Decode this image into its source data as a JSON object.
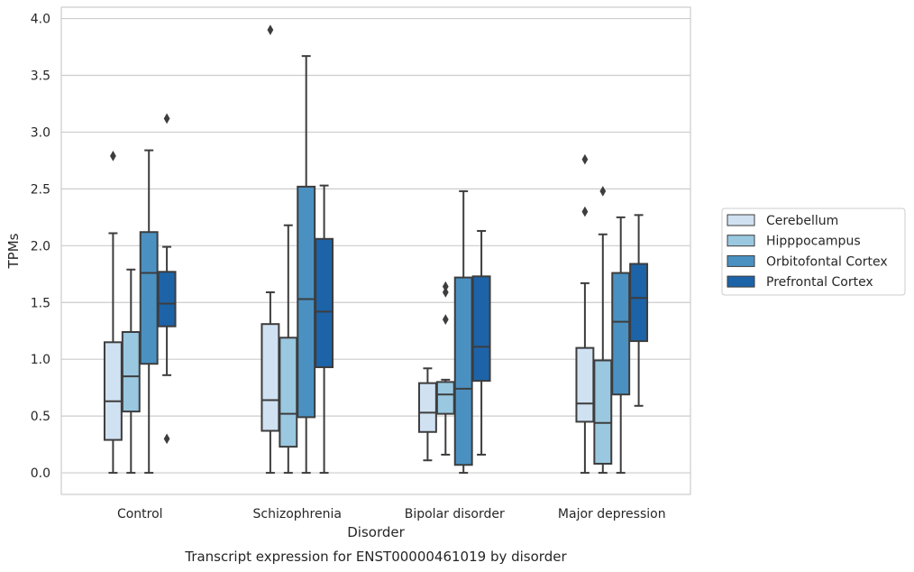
{
  "chart_data": {
    "type": "box",
    "xlabel": "Disorder",
    "ylabel": "TPMs",
    "caption": "Transcript expression for ENST00000461019 by disorder",
    "ylim": [
      -0.19,
      4.1
    ],
    "yticks": [
      "0.0",
      "0.5",
      "1.0",
      "1.5",
      "2.0",
      "2.5",
      "3.0",
      "3.5",
      "4.0"
    ],
    "grid": "horizontal",
    "legend_position": "right",
    "categories": [
      "Control",
      "Schizophrenia",
      "Bipolar disorder",
      "Major depression"
    ],
    "series": [
      {
        "name": "Cerebellum",
        "color": "#d0e1f2",
        "boxes": [
          {
            "min": 0.0,
            "q1": 0.29,
            "median": 0.63,
            "q3": 1.15,
            "max": 2.11,
            "outliers": [
              2.79
            ]
          },
          {
            "min": 0.0,
            "q1": 0.37,
            "median": 0.64,
            "q3": 1.31,
            "max": 1.59,
            "outliers": [
              3.9
            ]
          },
          {
            "min": 0.11,
            "q1": 0.36,
            "median": 0.53,
            "q3": 0.79,
            "max": 0.92,
            "outliers": []
          },
          {
            "min": 0.0,
            "q1": 0.45,
            "median": 0.61,
            "q3": 1.1,
            "max": 1.67,
            "outliers": [
              2.3,
              2.76
            ]
          }
        ]
      },
      {
        "name": "Hipppocampus",
        "color": "#9ac8e0",
        "boxes": [
          {
            "min": 0.0,
            "q1": 0.54,
            "median": 0.85,
            "q3": 1.24,
            "max": 1.79,
            "outliers": []
          },
          {
            "min": 0.0,
            "q1": 0.23,
            "median": 0.52,
            "q3": 1.19,
            "max": 2.18,
            "outliers": []
          },
          {
            "min": 0.16,
            "q1": 0.52,
            "median": 0.69,
            "q3": 0.8,
            "max": 0.82,
            "outliers": [
              1.35,
              1.59,
              1.64
            ]
          },
          {
            "min": 0.0,
            "q1": 0.08,
            "median": 0.44,
            "q3": 0.99,
            "max": 2.1,
            "outliers": [
              2.48
            ]
          }
        ]
      },
      {
        "name": "Orbitofontal Cortex",
        "color": "#4a91c2",
        "boxes": [
          {
            "min": 0.0,
            "q1": 0.96,
            "median": 1.76,
            "q3": 2.12,
            "max": 2.84,
            "outliers": []
          },
          {
            "min": 0.0,
            "q1": 0.49,
            "median": 1.53,
            "q3": 2.52,
            "max": 3.67,
            "outliers": []
          },
          {
            "min": 0.0,
            "q1": 0.07,
            "median": 0.74,
            "q3": 1.72,
            "max": 2.48,
            "outliers": []
          },
          {
            "min": 0.0,
            "q1": 0.69,
            "median": 1.33,
            "q3": 1.76,
            "max": 2.25,
            "outliers": []
          }
        ]
      },
      {
        "name": "Prefrontal Cortex",
        "color": "#1d63a8",
        "boxes": [
          {
            "min": 0.86,
            "q1": 1.29,
            "median": 1.49,
            "q3": 1.77,
            "max": 1.99,
            "outliers": [
              0.3,
              3.12
            ]
          },
          {
            "min": 0.0,
            "q1": 0.93,
            "median": 1.42,
            "q3": 2.06,
            "max": 2.53,
            "outliers": []
          },
          {
            "min": 0.16,
            "q1": 0.81,
            "median": 1.11,
            "q3": 1.73,
            "max": 2.13,
            "outliers": []
          },
          {
            "min": 0.59,
            "q1": 1.16,
            "median": 1.54,
            "q3": 1.84,
            "max": 2.27,
            "outliers": []
          }
        ]
      }
    ]
  }
}
